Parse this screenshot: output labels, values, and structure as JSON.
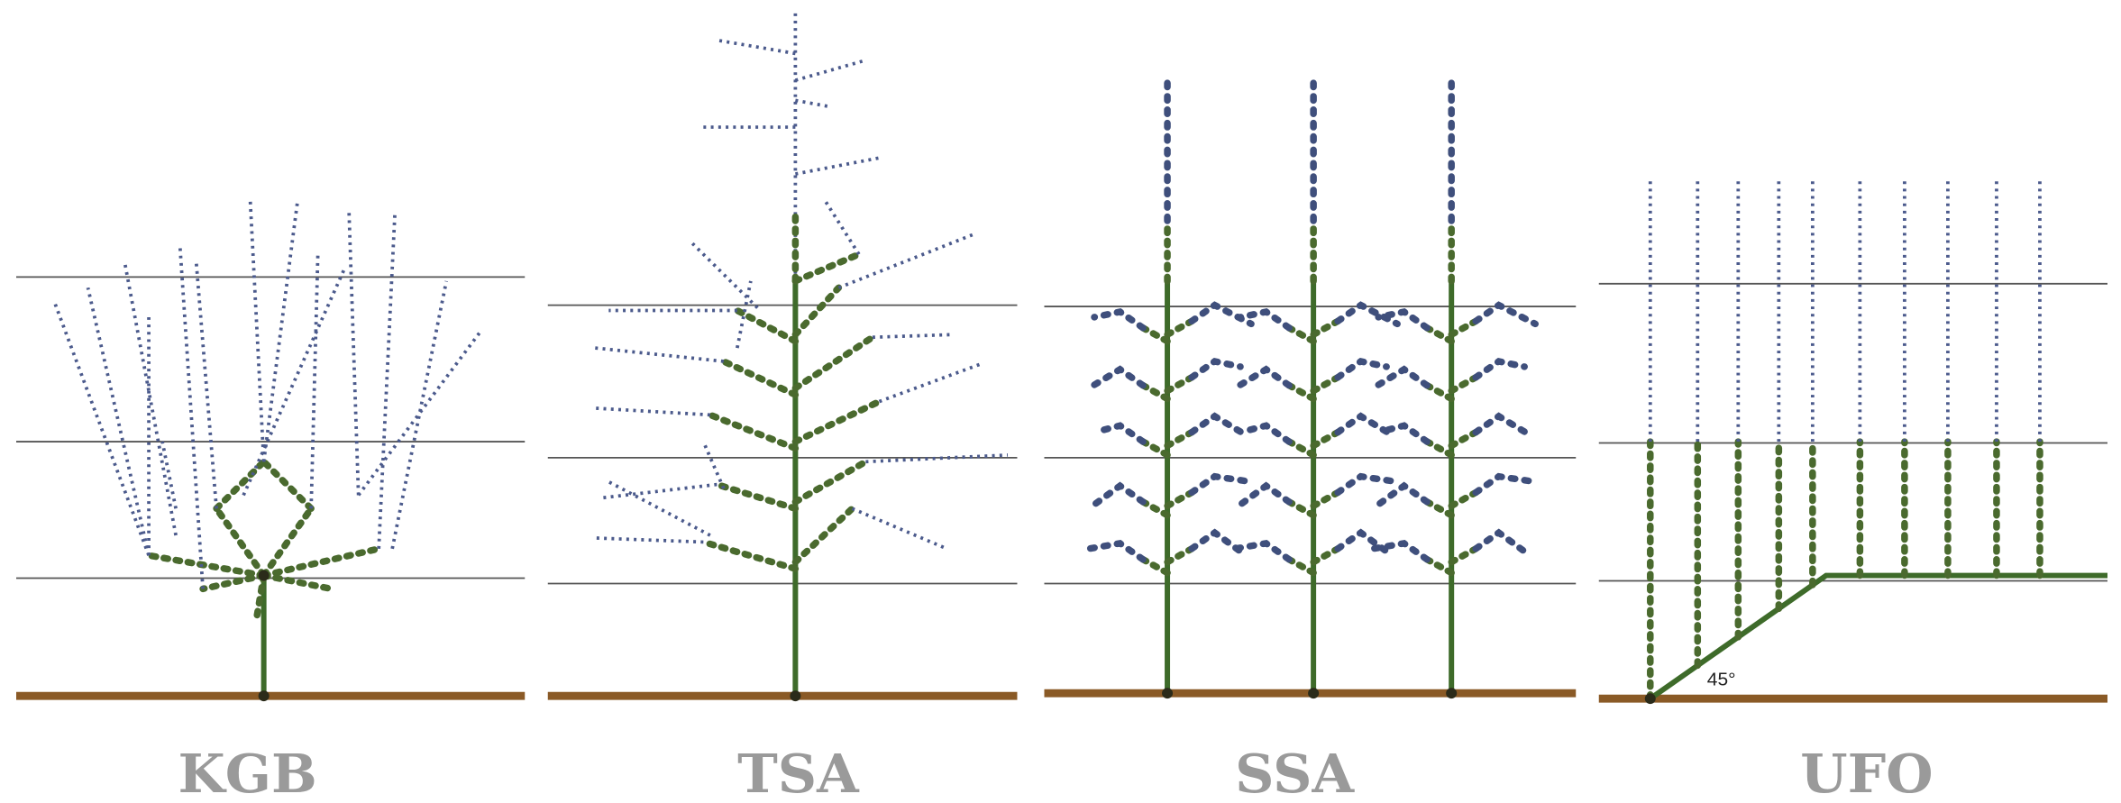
{
  "panels": [
    {
      "label": "KGB"
    },
    {
      "label": "TSA"
    },
    {
      "label": "SSA"
    },
    {
      "label": "UFO",
      "annotation": "45°"
    }
  ]
}
